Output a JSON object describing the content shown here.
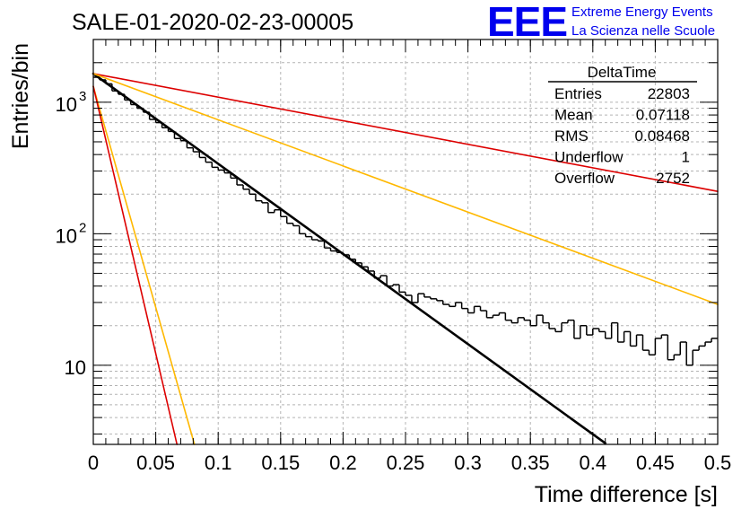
{
  "header": {
    "run_title": "SALE-01-2020-02-23-00005",
    "logo_text": "EEE",
    "org_line1": "Extreme Energy Events",
    "org_line2": "La Scienza nelle Scuole"
  },
  "stats_box": {
    "title": "DeltaTime",
    "rows": [
      {
        "label": "Entries",
        "value": "22803"
      },
      {
        "label": "Mean",
        "value": "0.07118"
      },
      {
        "label": "RMS",
        "value": "0.08468"
      },
      {
        "label": "Underflow",
        "value": "1"
      },
      {
        "label": "Overflow",
        "value": "2752"
      }
    ]
  },
  "colors": {
    "histogram": "#000000",
    "fit": "#000000",
    "red_bound": "#dd0000",
    "yellow_bound": "#ffb800",
    "logo": "#0000ee"
  },
  "chart_data": {
    "type": "line",
    "title": "SALE-01-2020-02-23-00005",
    "xlabel": "Time difference [s]",
    "ylabel": "Entries/bin",
    "xlim": [
      0,
      0.5
    ],
    "ylim": [
      2.5,
      3000
    ],
    "y_scale": "log",
    "grid": true,
    "x_ticks": [
      "0",
      "0.05",
      "0.1",
      "0.15",
      "0.2",
      "0.25",
      "0.3",
      "0.35",
      "0.4",
      "0.45",
      "0.5"
    ],
    "y_tick_labels": [
      {
        "value": 1000,
        "base": "10",
        "exp": "3"
      },
      {
        "value": 100,
        "base": "10",
        "exp": "2"
      },
      {
        "value": 10,
        "base": "10",
        "exp": ""
      }
    ],
    "histogram": {
      "name": "DeltaTime",
      "bin_width": 0.005,
      "x_start": 0,
      "values": [
        1550,
        1480,
        1380,
        1220,
        1150,
        1040,
        960,
        900,
        840,
        740,
        700,
        640,
        600,
        530,
        510,
        450,
        420,
        380,
        350,
        320,
        305,
        290,
        265,
        235,
        218,
        200,
        178,
        172,
        145,
        152,
        135,
        120,
        115,
        100,
        95,
        90,
        88,
        78,
        74,
        72,
        69,
        64,
        60,
        56,
        52,
        46,
        48,
        40,
        41,
        36,
        34,
        30,
        35,
        33,
        32,
        31,
        29,
        28,
        30,
        27,
        25,
        28,
        26,
        23,
        24,
        25,
        22,
        21,
        23,
        22,
        20,
        24,
        21,
        19,
        18,
        21,
        22,
        16,
        20,
        17,
        19,
        18,
        16,
        21,
        15,
        18,
        14,
        17,
        13,
        12,
        16,
        17,
        11,
        12,
        15,
        10,
        13,
        14,
        15,
        16
      ]
    },
    "series": [
      {
        "id": "fit",
        "color": "#000000",
        "stroke_width": 2.6,
        "x": [
          0,
          0.41
        ],
        "y": [
          1650,
          2.55
        ]
      },
      {
        "id": "red-slow",
        "color": "#dd0000",
        "stroke_width": 1.6,
        "x": [
          0,
          0.5
        ],
        "y": [
          1650,
          210
        ]
      },
      {
        "id": "yellow-slow",
        "color": "#ffb800",
        "stroke_width": 1.6,
        "x": [
          0,
          0.5
        ],
        "y": [
          1650,
          29
        ]
      },
      {
        "id": "yellow-fast",
        "color": "#ffb800",
        "stroke_width": 1.6,
        "x": [
          0,
          0.081
        ],
        "y": [
          1320,
          2.5
        ]
      },
      {
        "id": "red-fast",
        "color": "#dd0000",
        "stroke_width": 1.6,
        "x": [
          0,
          0.067
        ],
        "y": [
          1320,
          2.5
        ]
      }
    ]
  }
}
